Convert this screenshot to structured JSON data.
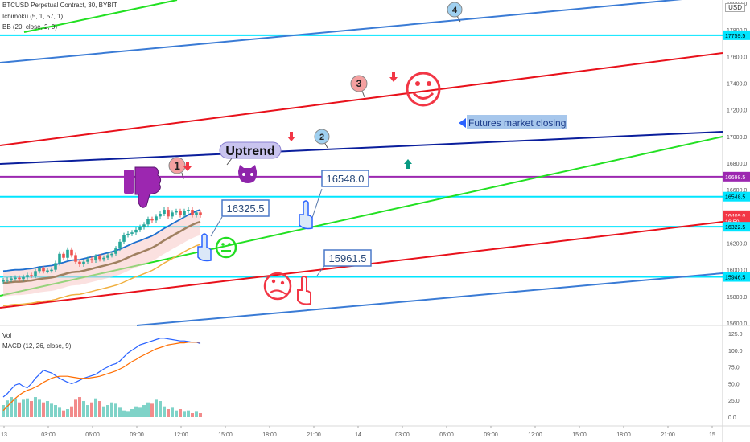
{
  "header": {
    "symbol": "BTCUSD Perpetual Contract, 30, BYBIT",
    "indicator1": "Ichimoku (5, 1, 57, 1)",
    "indicator2": "BB (20, close, 2, 0)",
    "vol_label": "Vol",
    "macd_label": "MACD (12, 26, close, 9)"
  },
  "price_axis": {
    "currency": "USD",
    "ticks": [
      "18000.0",
      "17800.0",
      "17600.0",
      "17400.0",
      "17200.0",
      "17000.0",
      "16800.0",
      "16600.0",
      "16400.0",
      "16200.0",
      "16000.0",
      "15800.0",
      "15600.0"
    ],
    "badges": [
      {
        "text": "17759.5",
        "color": "#00e5ff",
        "text_color": "#000000",
        "price": 17759.5
      },
      {
        "text": "16698.5",
        "color": "#9c27b0",
        "text_color": "#ffffff",
        "price": 16698.5
      },
      {
        "text": "16548.5",
        "color": "#00e5ff",
        "text_color": "#000000",
        "price": 16548.5
      },
      {
        "text": "16409.0",
        "color": "#f23645",
        "text_color": "#ffffff",
        "price": 16409.0
      },
      {
        "text": "16:50",
        "color": "#f23645",
        "text_color": "#ffffff",
        "price": 16363.0
      },
      {
        "text": "16322.5",
        "color": "#00e5ff",
        "text_color": "#000000",
        "price": 16322.5
      },
      {
        "text": "15946.5",
        "color": "#00e5ff",
        "text_color": "#000000",
        "price": 15946.5
      }
    ]
  },
  "macd_axis": {
    "ticks": [
      "125.0",
      "100.0",
      "75.0",
      "50.0",
      "25.0",
      "0.0"
    ]
  },
  "time_axis": {
    "ticks": [
      "13",
      "03:00",
      "06:00",
      "09:00",
      "12:00",
      "15:00",
      "18:00",
      "21:00",
      "14",
      "03:00",
      "06:00",
      "09:00",
      "12:00",
      "15:00",
      "18:00",
      "21:00",
      "15"
    ]
  },
  "annotations": {
    "price_labels": [
      "16548.0",
      "16325.5",
      "15961.5"
    ],
    "numbered": [
      "1",
      "2",
      "3",
      "4"
    ],
    "uptrend": "Uptrend",
    "futures_note": "Futures market closing"
  },
  "colors": {
    "cyan_level": "#00e5ff",
    "purple_level": "#9c27b0",
    "red_channel": "#e8111b",
    "green_channel": "#22e022",
    "blue_channel": "#3a7bd5",
    "navy_channel": "#0a1e9c",
    "candle_up": "#26a69a",
    "candle_down": "#ef5350"
  },
  "chart_data": {
    "type": "candlestick",
    "symbol": "BTCUSD Perpetual Contract",
    "interval": "30",
    "ylim": [
      15560,
      18000
    ],
    "horizontal_levels": [
      17759.5,
      16698.5,
      16548.5,
      16322.5,
      15946.5
    ],
    "last_price": 16409.0,
    "close": [
      15920,
      15925,
      15935,
      15940,
      15930,
      15945,
      15960,
      15955,
      15990,
      16010,
      15990,
      15995,
      16000,
      16050,
      16120,
      16090,
      16150,
      16110,
      16060,
      16040,
      16060,
      16080,
      16070,
      16100,
      16080,
      16090,
      16110,
      16120,
      16160,
      16210,
      16260,
      16270,
      16280,
      16300,
      16320,
      16340,
      16380,
      16370,
      16400,
      16420,
      16450,
      16400,
      16430,
      16440,
      16410,
      16440,
      16450,
      16410,
      16430,
      16409
    ],
    "volume": [
      18,
      25,
      30,
      28,
      22,
      26,
      28,
      24,
      30,
      26,
      22,
      24,
      20,
      18,
      14,
      10,
      12,
      16,
      26,
      30,
      24,
      18,
      22,
      28,
      24,
      16,
      18,
      22,
      20,
      14,
      10,
      8,
      12,
      16,
      14,
      18,
      22,
      20,
      26,
      24,
      16,
      12,
      14,
      10,
      12,
      8,
      10,
      6,
      8,
      6
    ],
    "macd": [
      30,
      35,
      42,
      48,
      50,
      46,
      44,
      50,
      58,
      64,
      70,
      68,
      66,
      62,
      58,
      55,
      52,
      50,
      52,
      55,
      58,
      60,
      62,
      64,
      68,
      72,
      75,
      78,
      80,
      84,
      90,
      96,
      100,
      104,
      108,
      110,
      112,
      114,
      116,
      118,
      118,
      117,
      116,
      115,
      114,
      114,
      113,
      112,
      112,
      110
    ],
    "signal": [
      10,
      16,
      22,
      28,
      33,
      37,
      40,
      42,
      45,
      48,
      52,
      55,
      58,
      60,
      61,
      61,
      61,
      60,
      59,
      58,
      58,
      58,
      59,
      60,
      61,
      63,
      65,
      67,
      69,
      72,
      75,
      79,
      83,
      86,
      90,
      93,
      96,
      99,
      102,
      104,
      106,
      108,
      109,
      110,
      111,
      111,
      112,
      112,
      112,
      112
    ]
  }
}
